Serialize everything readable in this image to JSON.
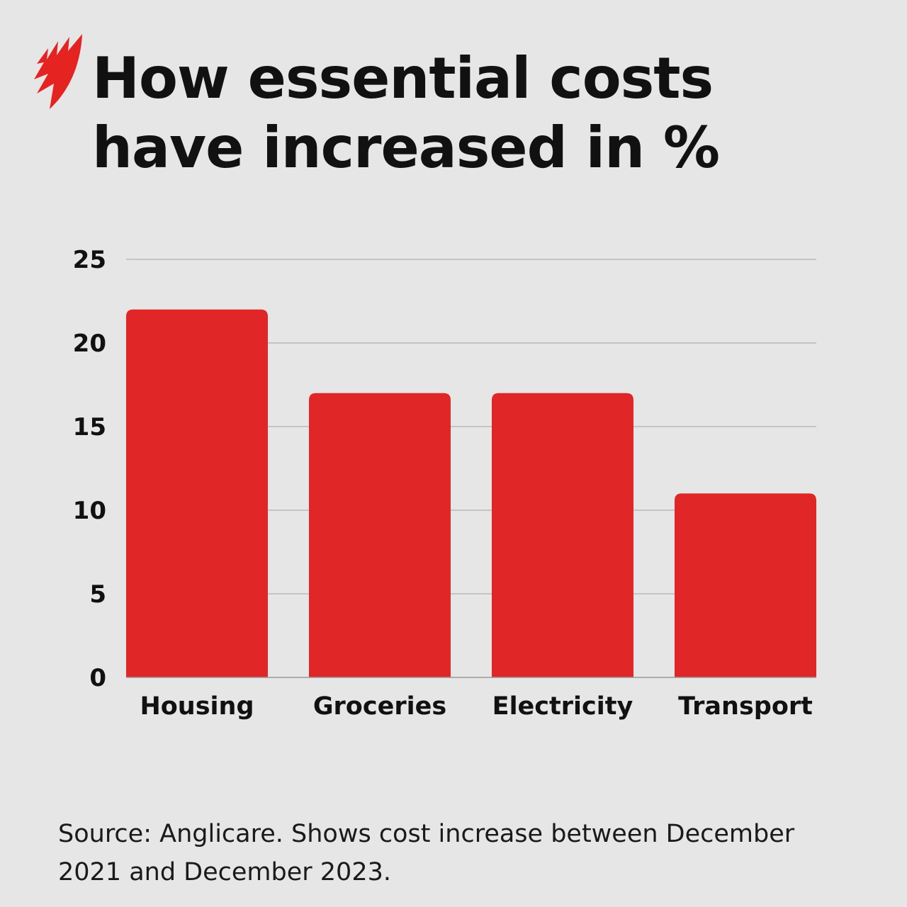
{
  "title": {
    "line1": "How essential costs",
    "line2": "have increased in %"
  },
  "logo": {
    "name": "SBS logo",
    "color": "#e52421"
  },
  "chart_data": {
    "type": "bar",
    "title": "How essential costs have increased in %",
    "categories": [
      "Housing",
      "Groceries",
      "Electricity",
      "Transport"
    ],
    "values": [
      22,
      17,
      17,
      11
    ],
    "xlabel": "",
    "ylabel": "",
    "ylim": [
      0,
      25
    ],
    "yticks": [
      0,
      5,
      10,
      15,
      20,
      25
    ],
    "grid": true,
    "bar_color": "#e02626"
  },
  "source": "Source: Anglicare. Shows cost increase between December 2021 and December 2023."
}
